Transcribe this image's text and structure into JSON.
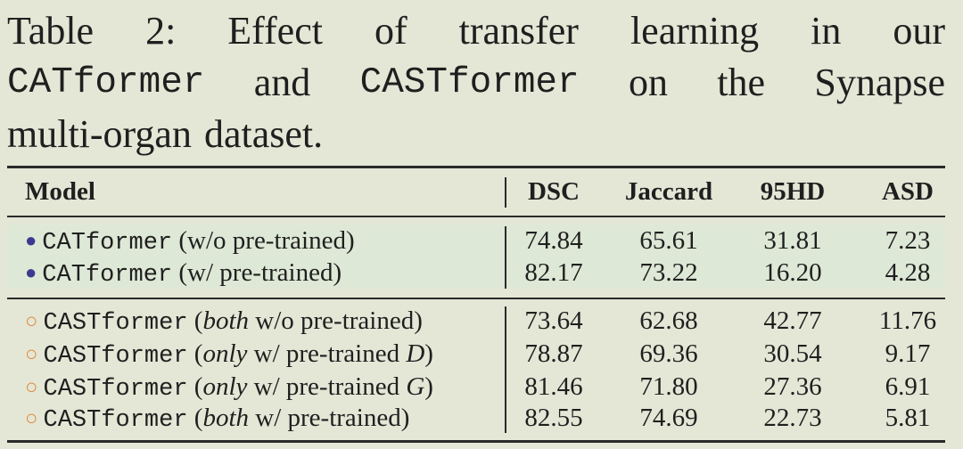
{
  "caption": {
    "line1": [
      "Table",
      "2:",
      "Effect",
      "of",
      "transfer",
      "learning",
      "in",
      "our"
    ],
    "line2_mono1": "CATformer",
    "line2_and": "and",
    "line2_mono2": "CASTformer",
    "line2_rest": [
      "on",
      "the",
      "Synapse"
    ],
    "line3": [
      "multi-organ",
      "dataset."
    ]
  },
  "table": {
    "headers": [
      "Model",
      "DSC",
      "Jaccard",
      "95HD",
      "ASD"
    ],
    "rows": [
      {
        "marker": "●",
        "model": "CATformer",
        "pre": " (w/o pre-trained)",
        "ital": "",
        "post": "",
        "values": [
          "74.84",
          "65.61",
          "31.81",
          "7.23"
        ]
      },
      {
        "marker": "●",
        "model": "CATformer",
        "pre": " (w/ pre-trained)",
        "ital": "",
        "post": "",
        "values": [
          "82.17",
          "73.22",
          "16.20",
          "4.28"
        ]
      },
      {
        "marker": "○",
        "model": "CASTformer",
        "pre": " (",
        "ital": "both",
        "post": " w/o pre-trained)",
        "values": [
          "73.64",
          "62.68",
          "42.77",
          "11.76"
        ]
      },
      {
        "marker": "○",
        "model": "CASTformer",
        "pre": " (",
        "ital": "only",
        "post": " w/ pre-trained ",
        "ital2": "D",
        "post2": ")",
        "values": [
          "78.87",
          "69.36",
          "30.54",
          "9.17"
        ]
      },
      {
        "marker": "○",
        "model": "CASTformer",
        "pre": " (",
        "ital": "only",
        "post": " w/ pre-trained ",
        "ital2": "G",
        "post2": ")",
        "values": [
          "81.46",
          "71.80",
          "27.36",
          "6.91"
        ]
      },
      {
        "marker": "○",
        "model": "CASTformer",
        "pre": " (",
        "ital": "both",
        "post": " w/ pre-trained)",
        "values": [
          "82.55",
          "74.69",
          "22.73",
          "5.81"
        ]
      }
    ]
  }
}
